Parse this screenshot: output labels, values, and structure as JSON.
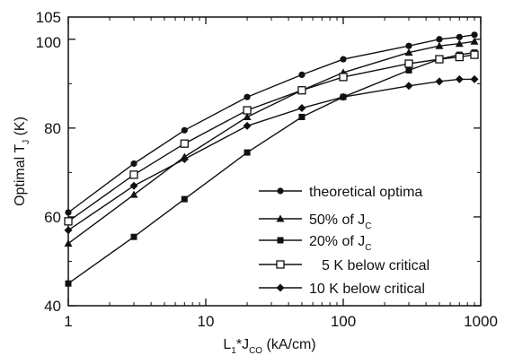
{
  "chart_data": {
    "type": "line",
    "xlabel": "L₁*J_CO (kA/cm)",
    "ylabel": "Optimal T_J (K)",
    "x_scale": "log",
    "xlim": [
      1,
      1000
    ],
    "ylim": [
      40,
      105
    ],
    "x_ticks": [
      1,
      10,
      100,
      1000
    ],
    "x_tick_labels": [
      "1",
      "10",
      "100",
      "1000"
    ],
    "y_ticks": [
      40,
      60,
      80,
      100,
      105
    ],
    "y_tick_labels": [
      "40",
      "60",
      "80",
      "100",
      "105"
    ],
    "grid": false,
    "legend_position": "lower-right",
    "x": [
      1,
      3,
      7,
      20,
      50,
      100,
      300,
      500,
      700,
      900
    ],
    "series": [
      {
        "name": "theoretical optima",
        "marker": "filled-circle",
        "values": [
          61.0,
          72.0,
          79.5,
          87.0,
          92.0,
          95.5,
          98.5,
          100.0,
          100.5,
          101.0
        ]
      },
      {
        "name": "50% of J_C",
        "marker": "filled-triangle",
        "values": [
          54.0,
          65.0,
          73.5,
          82.5,
          88.5,
          92.5,
          97.0,
          98.5,
          99.0,
          99.5
        ]
      },
      {
        "name": "20% of J_C",
        "marker": "filled-square",
        "values": [
          45.0,
          55.5,
          64.0,
          74.5,
          82.5,
          87.0,
          93.0,
          95.5,
          96.5,
          97.0
        ]
      },
      {
        "name": "5 K below critical",
        "marker": "open-square",
        "values": [
          59.0,
          69.5,
          76.5,
          84.0,
          88.5,
          91.5,
          94.5,
          95.5,
          96.0,
          96.5
        ]
      },
      {
        "name": "10 K below critical",
        "marker": "filled-diamond",
        "values": [
          57.0,
          67.0,
          73.0,
          80.5,
          84.5,
          87.0,
          89.5,
          90.5,
          91.0,
          91.0
        ]
      }
    ]
  },
  "legend": {
    "items": [
      {
        "text": "theoretical optima",
        "marker": "filled-circle"
      },
      {
        "main": "50% of J",
        "sub": "C",
        "marker": "filled-triangle"
      },
      {
        "main": "20% of J",
        "sub": "C",
        "marker": "filled-square"
      },
      {
        "text": "5 K below critical",
        "marker": "open-square"
      },
      {
        "text": "10 K below critical",
        "marker": "filled-diamond"
      }
    ]
  },
  "axis_text": {
    "x_main_1": "L",
    "x_sub_1": "1",
    "x_main_2": "*J",
    "x_sub_2": "CO",
    "x_main_3": " (kA/cm)",
    "y_main_1": "Optimal  T",
    "y_sub_1": "J",
    "y_main_2": " (K)"
  }
}
